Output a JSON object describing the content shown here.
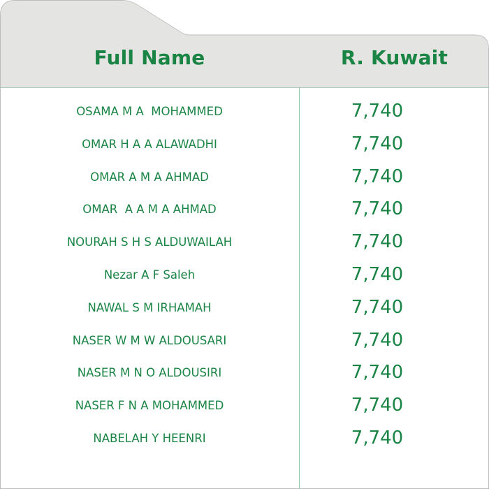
{
  "colors": {
    "accent": "#1a8445",
    "header_bg": "#e4e4e3",
    "divider": "#8fc9a6"
  },
  "table": {
    "headers": {
      "name": "Full Name",
      "value": "R. Kuwait"
    },
    "rows": [
      {
        "name": "OSAMA M A  MOHAMMED",
        "value": "7,740"
      },
      {
        "name": "OMAR H A A ALAWADHI",
        "value": "7,740"
      },
      {
        "name": "OMAR A M A AHMAD",
        "value": "7,740"
      },
      {
        "name": "OMAR  A A M A AHMAD",
        "value": "7,740"
      },
      {
        "name": "NOURAH S H S ALDUWAILAH",
        "value": "7,740"
      },
      {
        "name": "Nezar A F Saleh",
        "value": "7,740"
      },
      {
        "name": "NAWAL S M IRHAMAH",
        "value": "7,740"
      },
      {
        "name": "NASER W M W ALDOUSARI",
        "value": "7,740"
      },
      {
        "name": "NASER M N O ALDOUSIRI",
        "value": "7,740"
      },
      {
        "name": "NASER F N A MOHAMMED",
        "value": "7,740"
      },
      {
        "name": "NABELAH Y HEENRI",
        "value": "7,740"
      }
    ]
  }
}
